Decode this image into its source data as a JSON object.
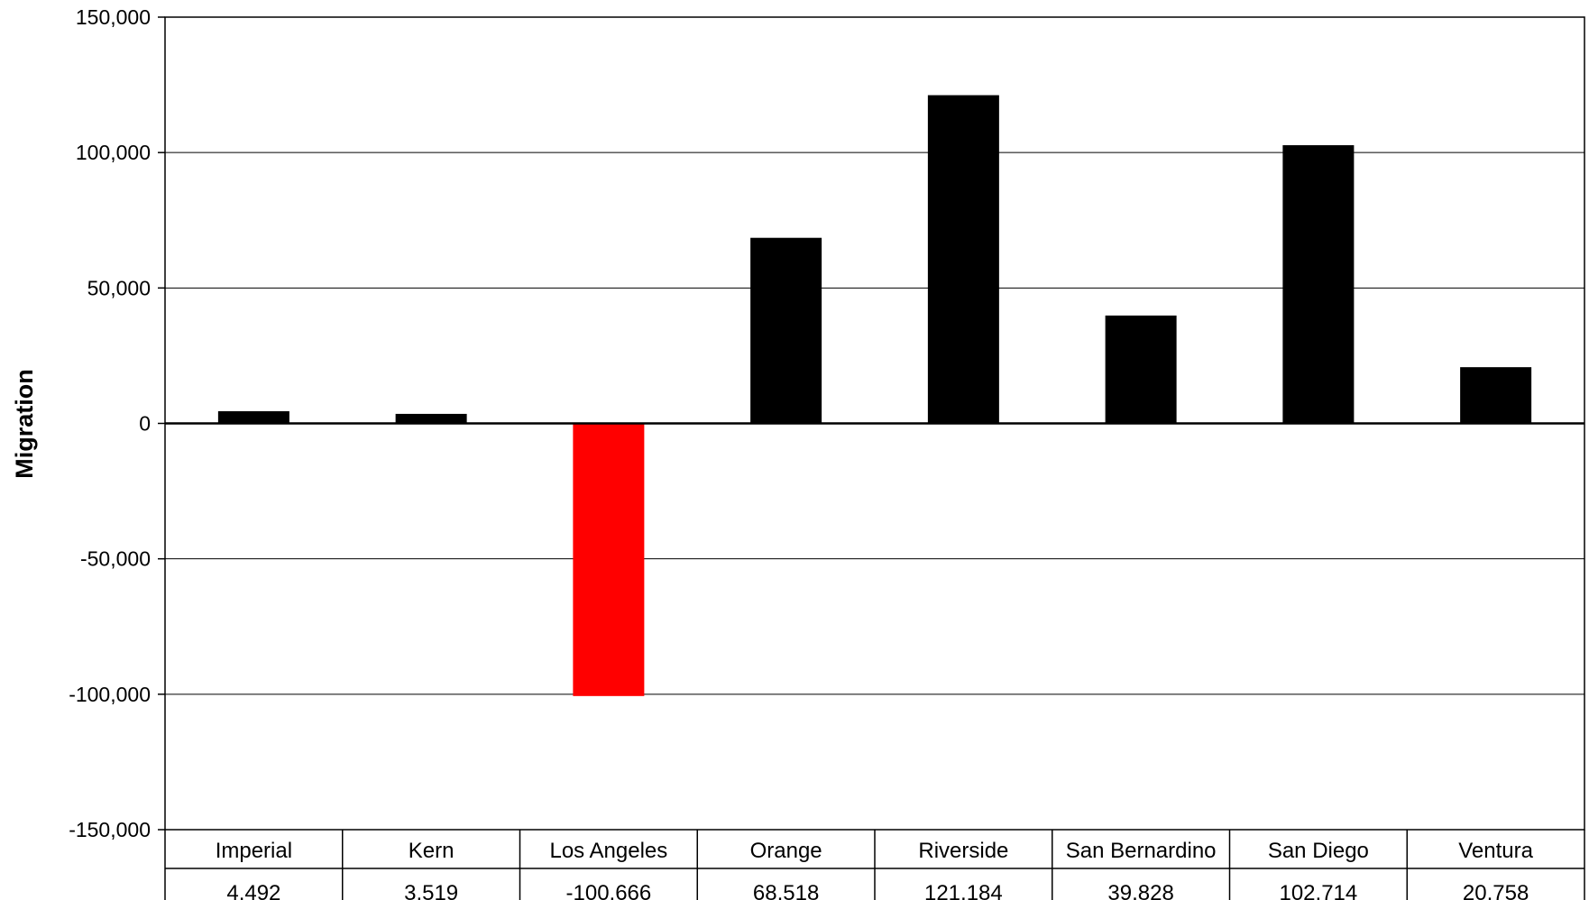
{
  "chart_data": {
    "type": "bar",
    "title": "",
    "xlabel": "",
    "ylabel": "Migration",
    "ylim": [
      -150000,
      150000
    ],
    "yticks": [
      150000,
      100000,
      50000,
      0,
      -50000,
      -100000,
      -150000
    ],
    "ytick_labels": [
      "150,000",
      "100,000",
      "50,000",
      "0",
      "-50,000",
      "-100,000",
      "-150,000"
    ],
    "grid": true,
    "legend": "none",
    "categories": [
      "Imperial",
      "Kern",
      "Los Angeles",
      "Orange",
      "Riverside",
      "San Bernardino",
      "San Diego",
      "Ventura"
    ],
    "values": [
      4492,
      3519,
      -100666,
      68518,
      121184,
      39828,
      102714,
      20758
    ],
    "value_labels": [
      "4,492",
      "3,519",
      "-100,666",
      "68,518",
      "121,184",
      "39,828",
      "102,714",
      "20,758"
    ],
    "colors": {
      "positive": "#000000",
      "negative": "#ff0000"
    },
    "data_table": true
  }
}
